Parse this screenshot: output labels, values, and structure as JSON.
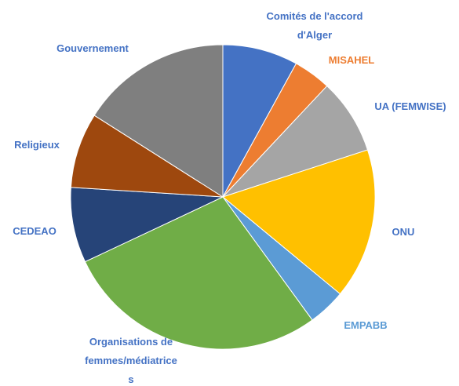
{
  "chart_data": {
    "type": "pie",
    "categories": [
      "Comités de l'accord\nd'Alger",
      "MISAHEL",
      "UA (FEMWISE)",
      "ONU",
      "EMPABB",
      "Organisations de\nfemmes/médiatrice\ns",
      "CEDEAO",
      "Religieux",
      "Gouvernement"
    ],
    "values": [
      8,
      4,
      8,
      16,
      4,
      28,
      8,
      8,
      16
    ],
    "colors": [
      "#4472c4",
      "#ed7d31",
      "#a5a5a5",
      "#ffc000",
      "#5b9bd5",
      "#70ad47",
      "#264478",
      "#9e480e",
      "#7f7f7f"
    ],
    "label_colors": [
      "#4472c4",
      "#ed7d31",
      "#4472c4",
      "#4472c4",
      "#5b9bd5",
      "#4472c4",
      "#4472c4",
      "#4472c4",
      "#4472c4"
    ]
  }
}
